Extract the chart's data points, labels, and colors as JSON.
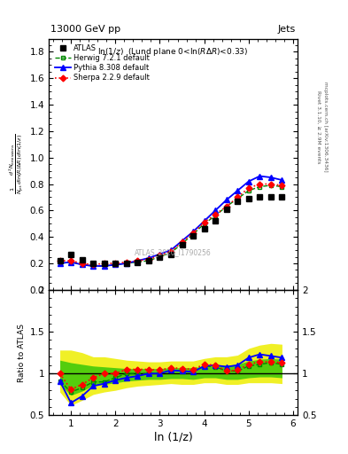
{
  "x_data": [
    0.75,
    1.0,
    1.25,
    1.5,
    1.75,
    2.0,
    2.25,
    2.5,
    2.75,
    3.0,
    3.25,
    3.5,
    3.75,
    4.0,
    4.25,
    4.5,
    4.75,
    5.0,
    5.25,
    5.5,
    5.75
  ],
  "y_atlas": [
    0.22,
    0.27,
    0.23,
    0.2,
    0.2,
    0.2,
    0.2,
    0.21,
    0.22,
    0.25,
    0.27,
    0.34,
    0.41,
    0.46,
    0.52,
    0.61,
    0.67,
    0.69,
    0.7,
    0.7,
    0.7
  ],
  "y_herwig": [
    0.2,
    0.21,
    0.19,
    0.18,
    0.18,
    0.19,
    0.2,
    0.21,
    0.22,
    0.25,
    0.28,
    0.35,
    0.42,
    0.5,
    0.56,
    0.63,
    0.69,
    0.75,
    0.78,
    0.79,
    0.78
  ],
  "y_pythia": [
    0.2,
    0.21,
    0.19,
    0.18,
    0.18,
    0.19,
    0.2,
    0.22,
    0.24,
    0.27,
    0.3,
    0.37,
    0.44,
    0.52,
    0.6,
    0.68,
    0.75,
    0.82,
    0.86,
    0.85,
    0.83
  ],
  "y_sherpa": [
    0.22,
    0.22,
    0.2,
    0.19,
    0.2,
    0.2,
    0.21,
    0.22,
    0.23,
    0.26,
    0.29,
    0.36,
    0.43,
    0.51,
    0.57,
    0.63,
    0.7,
    0.77,
    0.8,
    0.8,
    0.79
  ],
  "ratio_herwig": [
    0.91,
    0.78,
    0.83,
    0.9,
    0.9,
    0.95,
    1.0,
    1.0,
    1.0,
    1.0,
    1.04,
    1.03,
    1.02,
    1.09,
    1.08,
    1.03,
    1.03,
    1.09,
    1.11,
    1.13,
    1.11
  ],
  "ratio_pythia": [
    0.91,
    0.65,
    0.73,
    0.85,
    0.88,
    0.92,
    0.95,
    0.97,
    1.0,
    1.0,
    1.04,
    1.03,
    1.02,
    1.09,
    1.1,
    1.08,
    1.1,
    1.19,
    1.23,
    1.21,
    1.19
  ],
  "ratio_sherpa": [
    1.0,
    0.81,
    0.87,
    0.95,
    1.0,
    1.0,
    1.05,
    1.05,
    1.05,
    1.04,
    1.07,
    1.06,
    1.05,
    1.11,
    1.1,
    1.03,
    1.04,
    1.11,
    1.14,
    1.14,
    1.13
  ],
  "band_yellow_lo": [
    0.78,
    0.62,
    0.68,
    0.75,
    0.78,
    0.8,
    0.83,
    0.85,
    0.86,
    0.87,
    0.88,
    0.87,
    0.87,
    0.89,
    0.89,
    0.87,
    0.87,
    0.89,
    0.89,
    0.89,
    0.88
  ],
  "band_yellow_hi": [
    1.28,
    1.28,
    1.25,
    1.2,
    1.2,
    1.18,
    1.16,
    1.15,
    1.14,
    1.14,
    1.15,
    1.15,
    1.15,
    1.18,
    1.2,
    1.2,
    1.22,
    1.3,
    1.34,
    1.36,
    1.35
  ],
  "band_green_lo": [
    0.87,
    0.74,
    0.79,
    0.86,
    0.87,
    0.89,
    0.91,
    0.92,
    0.93,
    0.93,
    0.94,
    0.94,
    0.93,
    0.95,
    0.95,
    0.93,
    0.93,
    0.95,
    0.96,
    0.96,
    0.95
  ],
  "band_green_hi": [
    1.16,
    1.13,
    1.11,
    1.09,
    1.08,
    1.07,
    1.06,
    1.06,
    1.06,
    1.06,
    1.07,
    1.07,
    1.07,
    1.09,
    1.1,
    1.1,
    1.11,
    1.15,
    1.17,
    1.18,
    1.17
  ],
  "color_atlas": "#000000",
  "color_herwig": "#008800",
  "color_pythia": "#0000ff",
  "color_sherpa": "#ff0000",
  "color_yellow": "#eeee00",
  "color_green": "#00bb00",
  "xlim": [
    0.5,
    6.1
  ],
  "ylim_main": [
    0.0,
    1.9
  ],
  "ylim_ratio": [
    0.5,
    2.0
  ],
  "yticks_main": [
    0.0,
    0.2,
    0.4,
    0.6,
    0.8,
    1.0,
    1.2,
    1.4,
    1.6,
    1.8
  ],
  "xticks": [
    1,
    2,
    3,
    4,
    5,
    6
  ]
}
